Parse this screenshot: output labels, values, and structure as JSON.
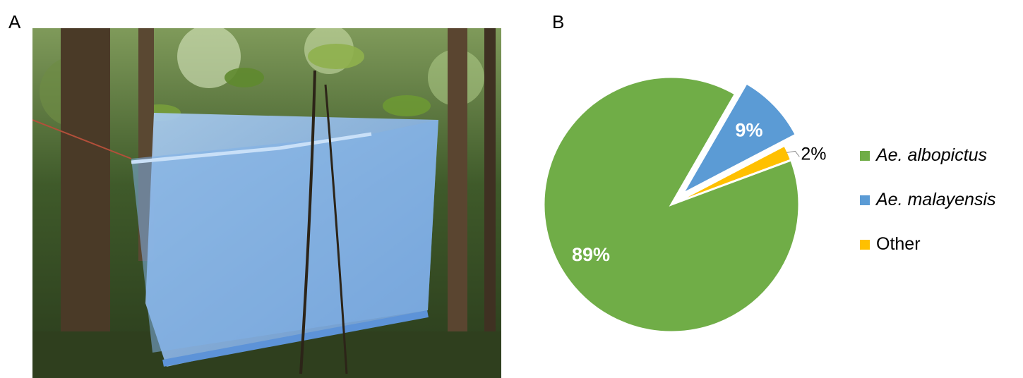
{
  "panels": {
    "a": "A",
    "b": "B"
  },
  "photo": {
    "subject": "blue-mosquito-net-trap-icon"
  },
  "chart_data": {
    "type": "pie",
    "slices": [
      {
        "label": "Ae. albopictus",
        "value": 89,
        "data_label": "89%",
        "color": "#70ad47",
        "exploded": false
      },
      {
        "label": "Ae. malayensis",
        "value": 9,
        "data_label": "9%",
        "color": "#5b9bd5",
        "exploded": true
      },
      {
        "label": "Other",
        "value": 2,
        "data_label": "2%",
        "color": "#ffc000",
        "exploded": false
      }
    ],
    "legend_position": "right"
  }
}
